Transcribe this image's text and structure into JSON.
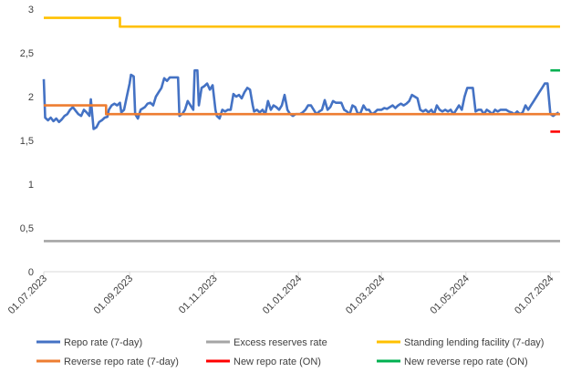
{
  "chart_data": {
    "type": "line",
    "title": "",
    "xlabel": "",
    "ylabel": "",
    "ylim": [
      0,
      3
    ],
    "yticks": [
      {
        "value": 0,
        "label": "0"
      },
      {
        "value": 0.5,
        "label": "0,5"
      },
      {
        "value": 1,
        "label": "1"
      },
      {
        "value": 1.5,
        "label": "1,5"
      },
      {
        "value": 2,
        "label": "2"
      },
      {
        "value": 2.5,
        "label": "2,5"
      },
      {
        "value": 3,
        "label": "3"
      }
    ],
    "xrange": [
      "2023-07-01",
      "2024-07-08"
    ],
    "xticks": [
      {
        "date": "2023-07-01",
        "label": "01.07.2023"
      },
      {
        "date": "2023-09-01",
        "label": "01.09.2023"
      },
      {
        "date": "2023-11-01",
        "label": "01.11.2023"
      },
      {
        "date": "2024-01-01",
        "label": "01.01.2024"
      },
      {
        "date": "2024-03-01",
        "label": "01.03.2024"
      },
      {
        "date": "2024-05-01",
        "label": "01.05.2024"
      },
      {
        "date": "2024-07-01",
        "label": "01.07.2024"
      }
    ],
    "grid": false,
    "legend_position": "bottom",
    "series": [
      {
        "name": "Repo rate (7-day)",
        "color": "#4472C4",
        "points": [
          [
            "2023-07-01",
            2.2
          ],
          [
            "2023-07-02",
            1.76
          ],
          [
            "2023-07-04",
            1.73
          ],
          [
            "2023-07-06",
            1.76
          ],
          [
            "2023-07-08",
            1.72
          ],
          [
            "2023-07-10",
            1.75
          ],
          [
            "2023-07-12",
            1.71
          ],
          [
            "2023-07-14",
            1.74
          ],
          [
            "2023-07-16",
            1.78
          ],
          [
            "2023-07-18",
            1.8
          ],
          [
            "2023-07-20",
            1.85
          ],
          [
            "2023-07-22",
            1.88
          ],
          [
            "2023-07-24",
            1.84
          ],
          [
            "2023-07-26",
            1.8
          ],
          [
            "2023-07-28",
            1.78
          ],
          [
            "2023-07-30",
            1.85
          ],
          [
            "2023-08-01",
            1.82
          ],
          [
            "2023-08-03",
            1.78
          ],
          [
            "2023-08-04",
            1.97
          ],
          [
            "2023-08-05",
            1.8
          ],
          [
            "2023-08-06",
            1.63
          ],
          [
            "2023-08-08",
            1.65
          ],
          [
            "2023-08-10",
            1.71
          ],
          [
            "2023-08-12",
            1.73
          ],
          [
            "2023-08-14",
            1.76
          ],
          [
            "2023-08-16",
            1.77
          ],
          [
            "2023-08-17",
            1.85
          ],
          [
            "2023-08-19",
            1.9
          ],
          [
            "2023-08-21",
            1.92
          ],
          [
            "2023-08-23",
            1.9
          ],
          [
            "2023-08-25",
            1.93
          ],
          [
            "2023-08-26",
            1.82
          ],
          [
            "2023-08-28",
            1.85
          ],
          [
            "2023-08-30",
            2.0
          ],
          [
            "2023-09-01",
            2.15
          ],
          [
            "2023-09-02",
            2.25
          ],
          [
            "2023-09-04",
            2.23
          ],
          [
            "2023-09-05",
            1.8
          ],
          [
            "2023-09-07",
            1.75
          ],
          [
            "2023-09-09",
            1.85
          ],
          [
            "2023-09-12",
            1.88
          ],
          [
            "2023-09-14",
            1.92
          ],
          [
            "2023-09-16",
            1.93
          ],
          [
            "2023-09-18",
            1.9
          ],
          [
            "2023-09-20",
            2.0
          ],
          [
            "2023-09-22",
            2.05
          ],
          [
            "2023-09-24",
            2.1
          ],
          [
            "2023-09-26",
            2.21
          ],
          [
            "2023-09-28",
            2.18
          ],
          [
            "2023-09-30",
            2.22
          ],
          [
            "2023-10-02",
            2.22
          ],
          [
            "2023-10-04",
            2.22
          ],
          [
            "2023-10-06",
            2.22
          ],
          [
            "2023-10-07",
            1.78
          ],
          [
            "2023-10-09",
            1.8
          ],
          [
            "2023-10-11",
            1.85
          ],
          [
            "2023-10-13",
            1.95
          ],
          [
            "2023-10-15",
            1.9
          ],
          [
            "2023-10-17",
            1.85
          ],
          [
            "2023-10-18",
            2.3
          ],
          [
            "2023-10-20",
            2.3
          ],
          [
            "2023-10-21",
            1.9
          ],
          [
            "2023-10-23",
            2.1
          ],
          [
            "2023-10-25",
            2.12
          ],
          [
            "2023-10-27",
            2.15
          ],
          [
            "2023-10-29",
            2.08
          ],
          [
            "2023-10-31",
            2.13
          ],
          [
            "2023-11-02",
            1.85
          ],
          [
            "2023-11-03",
            1.78
          ],
          [
            "2023-11-05",
            1.75
          ],
          [
            "2023-11-07",
            1.85
          ],
          [
            "2023-11-09",
            1.83
          ],
          [
            "2023-11-11",
            1.85
          ],
          [
            "2023-11-13",
            1.85
          ],
          [
            "2023-11-15",
            2.03
          ],
          [
            "2023-11-17",
            2.0
          ],
          [
            "2023-11-19",
            2.02
          ],
          [
            "2023-11-21",
            1.98
          ],
          [
            "2023-11-23",
            2.05
          ],
          [
            "2023-11-25",
            2.1
          ],
          [
            "2023-11-27",
            2.08
          ],
          [
            "2023-11-29",
            1.9
          ],
          [
            "2023-11-30",
            1.83
          ],
          [
            "2023-12-02",
            1.85
          ],
          [
            "2023-12-04",
            1.82
          ],
          [
            "2023-12-06",
            1.85
          ],
          [
            "2023-12-08",
            1.8
          ],
          [
            "2023-12-10",
            1.95
          ],
          [
            "2023-12-12",
            1.85
          ],
          [
            "2023-12-14",
            1.9
          ],
          [
            "2023-12-16",
            1.88
          ],
          [
            "2023-12-18",
            1.85
          ],
          [
            "2023-12-20",
            1.9
          ],
          [
            "2023-12-22",
            2.02
          ],
          [
            "2023-12-24",
            1.85
          ],
          [
            "2023-12-26",
            1.8
          ],
          [
            "2023-12-28",
            1.78
          ],
          [
            "2023-12-30",
            1.8
          ],
          [
            "2024-01-02",
            1.8
          ],
          [
            "2024-01-04",
            1.82
          ],
          [
            "2024-01-06",
            1.85
          ],
          [
            "2024-01-08",
            1.9
          ],
          [
            "2024-01-10",
            1.9
          ],
          [
            "2024-01-12",
            1.85
          ],
          [
            "2024-01-14",
            1.8
          ],
          [
            "2024-01-16",
            1.83
          ],
          [
            "2024-01-18",
            1.85
          ],
          [
            "2024-01-20",
            1.96
          ],
          [
            "2024-01-22",
            1.85
          ],
          [
            "2024-01-24",
            1.88
          ],
          [
            "2024-01-26",
            1.95
          ],
          [
            "2024-01-28",
            1.93
          ],
          [
            "2024-01-30",
            1.93
          ],
          [
            "2024-02-01",
            1.93
          ],
          [
            "2024-02-03",
            1.85
          ],
          [
            "2024-02-05",
            1.83
          ],
          [
            "2024-02-07",
            1.8
          ],
          [
            "2024-02-09",
            1.9
          ],
          [
            "2024-02-11",
            1.88
          ],
          [
            "2024-02-13",
            1.8
          ],
          [
            "2024-02-15",
            1.82
          ],
          [
            "2024-02-17",
            1.9
          ],
          [
            "2024-02-19",
            1.85
          ],
          [
            "2024-02-21",
            1.85
          ],
          [
            "2024-02-23",
            1.8
          ],
          [
            "2024-02-25",
            1.82
          ],
          [
            "2024-02-27",
            1.85
          ],
          [
            "2024-03-01",
            1.85
          ],
          [
            "2024-03-03",
            1.87
          ],
          [
            "2024-03-05",
            1.86
          ],
          [
            "2024-03-07",
            1.88
          ],
          [
            "2024-03-09",
            1.9
          ],
          [
            "2024-03-11",
            1.87
          ],
          [
            "2024-03-13",
            1.9
          ],
          [
            "2024-03-15",
            1.92
          ],
          [
            "2024-03-17",
            1.9
          ],
          [
            "2024-03-19",
            1.92
          ],
          [
            "2024-03-21",
            1.95
          ],
          [
            "2024-03-23",
            2.02
          ],
          [
            "2024-03-25",
            2.0
          ],
          [
            "2024-03-27",
            1.98
          ],
          [
            "2024-03-29",
            1.85
          ],
          [
            "2024-03-31",
            1.83
          ],
          [
            "2024-04-02",
            1.85
          ],
          [
            "2024-04-04",
            1.82
          ],
          [
            "2024-04-06",
            1.85
          ],
          [
            "2024-04-08",
            1.8
          ],
          [
            "2024-04-10",
            1.9
          ],
          [
            "2024-04-12",
            1.85
          ],
          [
            "2024-04-14",
            1.83
          ],
          [
            "2024-04-16",
            1.85
          ],
          [
            "2024-04-18",
            1.83
          ],
          [
            "2024-04-20",
            1.85
          ],
          [
            "2024-04-22",
            1.8
          ],
          [
            "2024-04-24",
            1.85
          ],
          [
            "2024-04-26",
            1.9
          ],
          [
            "2024-04-28",
            1.85
          ],
          [
            "2024-04-30",
            2.0
          ],
          [
            "2024-05-02",
            2.1
          ],
          [
            "2024-05-04",
            2.1
          ],
          [
            "2024-05-06",
            2.1
          ],
          [
            "2024-05-08",
            1.83
          ],
          [
            "2024-05-10",
            1.85
          ],
          [
            "2024-05-12",
            1.85
          ],
          [
            "2024-05-14",
            1.8
          ],
          [
            "2024-05-16",
            1.85
          ],
          [
            "2024-05-18",
            1.83
          ],
          [
            "2024-05-20",
            1.8
          ],
          [
            "2024-05-22",
            1.85
          ],
          [
            "2024-05-24",
            1.83
          ],
          [
            "2024-05-26",
            1.85
          ],
          [
            "2024-05-28",
            1.85
          ],
          [
            "2024-05-30",
            1.85
          ],
          [
            "2024-06-01",
            1.83
          ],
          [
            "2024-06-03",
            1.82
          ],
          [
            "2024-06-05",
            1.8
          ],
          [
            "2024-06-07",
            1.83
          ],
          [
            "2024-06-09",
            1.8
          ],
          [
            "2024-06-11",
            1.82
          ],
          [
            "2024-06-13",
            1.9
          ],
          [
            "2024-06-15",
            1.85
          ],
          [
            "2024-06-17",
            1.9
          ],
          [
            "2024-06-19",
            1.95
          ],
          [
            "2024-06-21",
            2.0
          ],
          [
            "2024-06-23",
            2.05
          ],
          [
            "2024-06-25",
            2.1
          ],
          [
            "2024-06-27",
            2.15
          ],
          [
            "2024-06-29",
            2.15
          ],
          [
            "2024-07-01",
            1.8
          ],
          [
            "2024-07-03",
            1.78
          ],
          [
            "2024-07-05",
            1.8
          ],
          [
            "2024-07-07",
            1.82
          ]
        ]
      },
      {
        "name": "Excess reserves rate",
        "color": "#A5A5A5",
        "points": [
          [
            "2023-07-01",
            0.35
          ],
          [
            "2024-07-08",
            0.35
          ]
        ]
      },
      {
        "name": "Standing lending facility (7-day)",
        "color": "#FFC000",
        "points": [
          [
            "2023-07-01",
            2.9
          ],
          [
            "2023-08-25",
            2.9
          ],
          [
            "2023-08-25",
            2.8
          ],
          [
            "2024-07-08",
            2.8
          ]
        ]
      },
      {
        "name": "Reverse repo rate (7-day)",
        "color": "#ED7D31",
        "points": [
          [
            "2023-07-01",
            1.9
          ],
          [
            "2023-08-15",
            1.9
          ],
          [
            "2023-08-15",
            1.8
          ],
          [
            "2024-07-08",
            1.8
          ]
        ]
      },
      {
        "name": "New repo rate (ON)",
        "color": "#FF0000",
        "points": [
          [
            "2024-07-01",
            1.6
          ],
          [
            "2024-07-08",
            1.6
          ]
        ]
      },
      {
        "name": "New reverse repo rate (ON)",
        "color": "#00B050",
        "points": [
          [
            "2024-07-01",
            2.3
          ],
          [
            "2024-07-08",
            2.3
          ]
        ]
      }
    ]
  }
}
